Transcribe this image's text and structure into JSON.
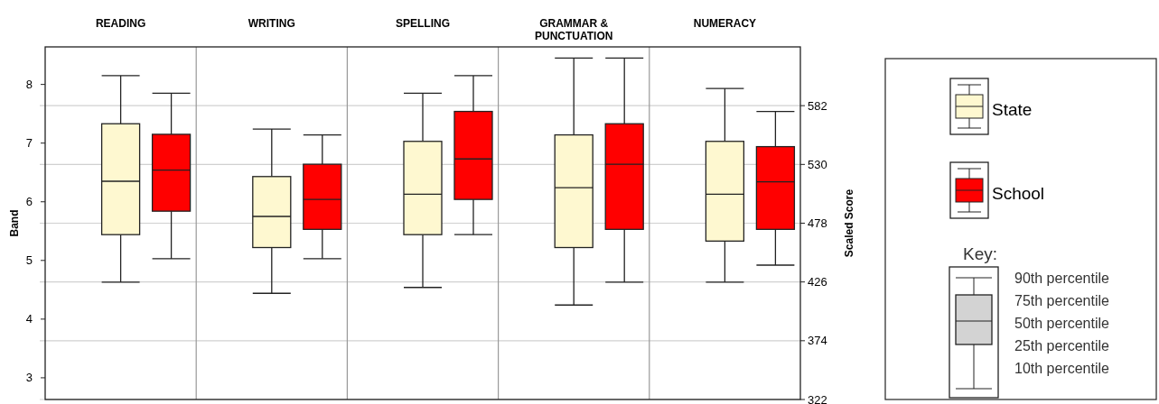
{
  "chart_data": {
    "type": "box",
    "categories": [
      "READING",
      "WRITING",
      "SPELLING",
      "GRAMMAR & PUNCTUATION",
      "NUMERACY"
    ],
    "ylabel": "Band",
    "y2label": "Scaled Score",
    "ylim": [
      2.63,
      8.64
    ],
    "yticks": [
      3,
      4,
      5,
      6,
      7,
      8
    ],
    "y2lim": [
      322,
      634
    ],
    "y2ticks": [
      322,
      374,
      426,
      478,
      530,
      582
    ],
    "grid": "y2",
    "legend": "right",
    "series": [
      {
        "name": "State",
        "color": "#fef8d0",
        "boxes": [
          {
            "low": 4.63,
            "q1": 5.44,
            "median": 6.35,
            "q3": 7.33,
            "high": 8.15
          },
          {
            "low": 4.44,
            "q1": 5.22,
            "median": 5.75,
            "q3": 6.43,
            "high": 7.24
          },
          {
            "low": 4.54,
            "q1": 5.44,
            "median": 6.13,
            "q3": 7.03,
            "high": 7.85
          },
          {
            "low": 4.24,
            "q1": 5.22,
            "median": 6.24,
            "q3": 7.14,
            "high": 8.45
          },
          {
            "low": 4.63,
            "q1": 5.33,
            "median": 6.13,
            "q3": 7.03,
            "high": 7.93
          }
        ]
      },
      {
        "name": "School",
        "color": "#ff0000",
        "boxes": [
          {
            "low": 5.03,
            "q1": 5.84,
            "median": 6.54,
            "q3": 7.15,
            "high": 7.85
          },
          {
            "low": 5.03,
            "q1": 5.53,
            "median": 6.04,
            "q3": 6.64,
            "high": 7.14
          },
          {
            "low": 5.44,
            "q1": 6.04,
            "median": 6.73,
            "q3": 7.54,
            "high": 8.15
          },
          {
            "low": 4.63,
            "q1": 5.53,
            "median": 6.64,
            "q3": 7.33,
            "high": 8.45
          },
          {
            "low": 4.92,
            "q1": 5.53,
            "median": 6.34,
            "q3": 6.94,
            "high": 7.54
          }
        ]
      }
    ],
    "annotations": [
      "Key:",
      "90th percentile",
      "75th percentile",
      "50th percentile",
      "25th percentile",
      "10th percentile"
    ]
  }
}
